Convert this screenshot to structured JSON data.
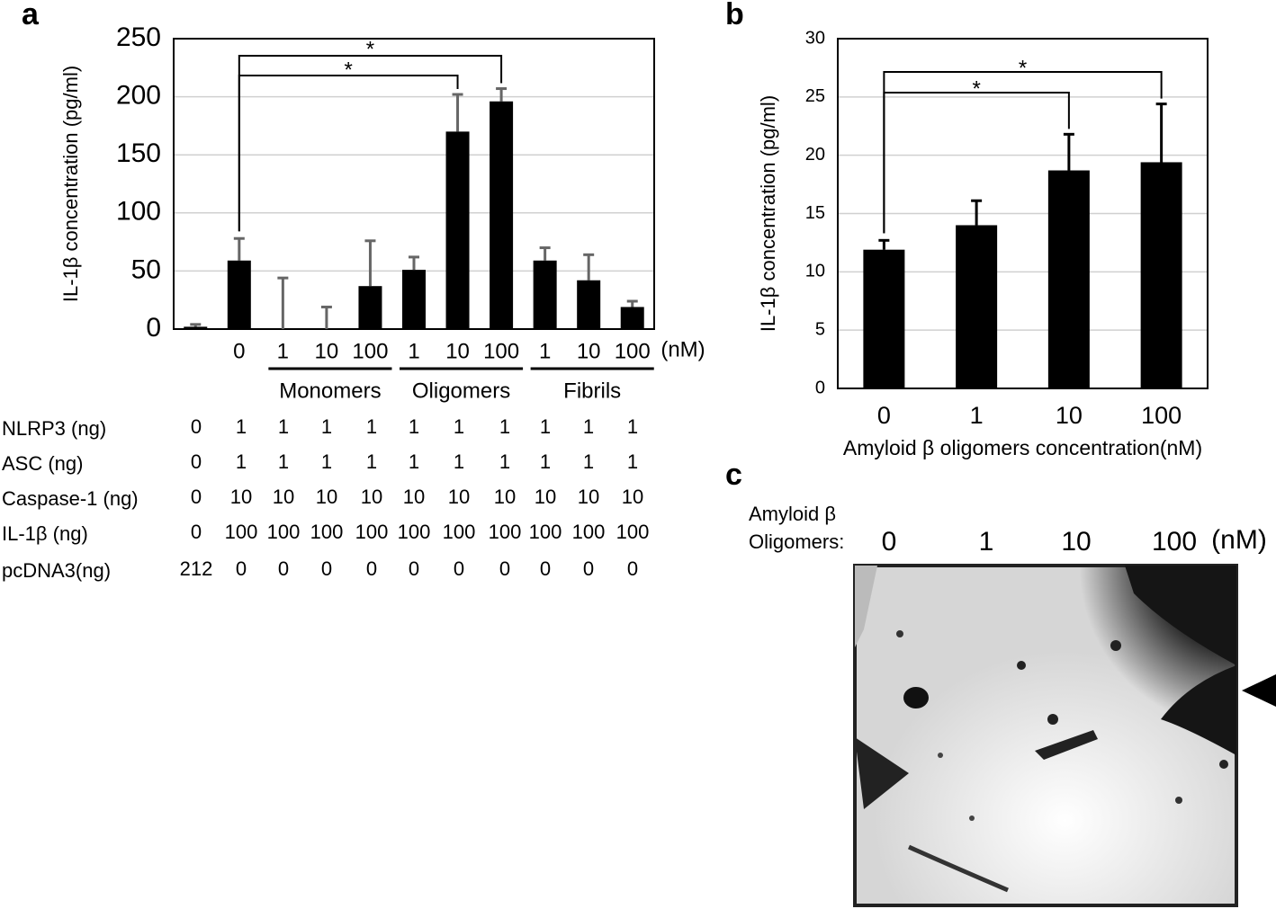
{
  "panel_labels": [
    "a",
    "b",
    "c"
  ],
  "chart_data": [
    {
      "type": "bar",
      "ylabel": "IL-1β concentration (pg/ml)",
      "categories": [
        null,
        "0",
        "1",
        "10",
        "100",
        "1",
        "10",
        "100",
        "1",
        "10",
        "100"
      ],
      "unit": "(nM)",
      "groups": [
        "Monomers",
        "Oligomers",
        "Fibrils"
      ],
      "values": [
        2,
        59,
        0,
        0,
        37,
        51,
        170,
        196,
        59,
        42,
        19
      ],
      "errors": [
        2,
        19,
        44,
        19,
        39,
        11,
        32,
        11,
        11,
        22,
        5
      ],
      "color": "#000000",
      "error_color": "#666666",
      "ylim": [
        0,
        250
      ],
      "yticks": [
        0,
        50,
        100,
        150,
        200,
        250
      ],
      "grid": true,
      "annotations": [
        "*",
        "*"
      ]
    },
    {
      "type": "bar",
      "ylabel": "IL-1β concentration (pg/ml)",
      "xlabel": "Amyloid β oligomers concentration(nM)",
      "categories": [
        "0",
        "1",
        "10",
        "100"
      ],
      "values": [
        11.9,
        14,
        18.7,
        19.4
      ],
      "errors": [
        0.8,
        2.1,
        3.1,
        5
      ],
      "color": "#000000",
      "error_color": "#000000",
      "ylim": [
        0,
        30
      ],
      "yticks": [
        0,
        5,
        10,
        15,
        20,
        25,
        30
      ],
      "grid": true,
      "annotations": [
        "*",
        "*"
      ]
    }
  ],
  "conditions": {
    "rows": [
      {
        "label": "NLRP3 (ng)",
        "values": [
          "0",
          "1",
          "1",
          "1",
          "1",
          "1",
          "1",
          "1",
          "1",
          "1",
          "1"
        ]
      },
      {
        "label": "ASC (ng)",
        "values": [
          "0",
          "1",
          "1",
          "1",
          "1",
          "1",
          "1",
          "1",
          "1",
          "1",
          "1"
        ]
      },
      {
        "label": "Caspase-1 (ng)",
        "values": [
          "0",
          "10",
          "10",
          "10",
          "10",
          "10",
          "10",
          "10",
          "10",
          "10",
          "10"
        ]
      },
      {
        "label": "IL-1β (ng)",
        "values": [
          "0",
          "100",
          "100",
          "100",
          "100",
          "100",
          "100",
          "100",
          "100",
          "100",
          "100"
        ]
      },
      {
        "label": "pcDNA3(ng)",
        "values": [
          "212",
          "0",
          "0",
          "0",
          "0",
          "0",
          "0",
          "0",
          "0",
          "0",
          "0"
        ]
      }
    ]
  },
  "blot": {
    "title_lines": [
      "Amyloid β",
      "Oligomers:"
    ],
    "lanes": [
      "0",
      "1",
      "10",
      "100"
    ],
    "unit": "(nM)"
  }
}
